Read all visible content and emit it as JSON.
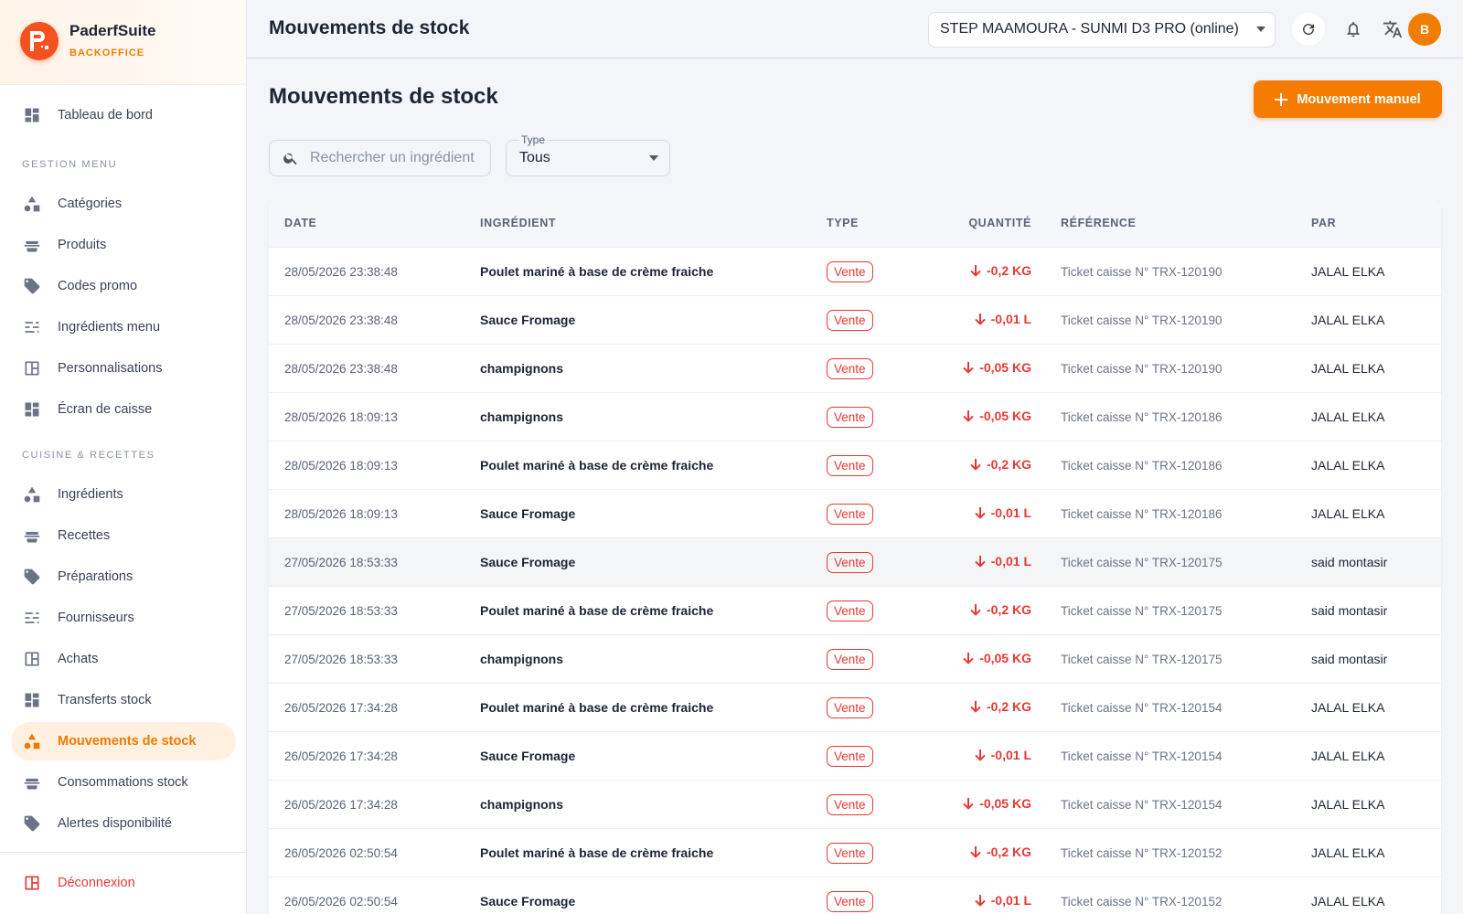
{
  "sidebar": {
    "brand": "PaderfSuite",
    "subtitle": "BACKOFFICE",
    "top_item": "Tableau de bord",
    "sections": [
      {
        "title": "GESTION MENU",
        "items": [
          {
            "label": "Catégories"
          },
          {
            "label": "Produits"
          },
          {
            "label": "Codes promo"
          },
          {
            "label": "Ingrédients menu"
          },
          {
            "label": "Personnalisations"
          },
          {
            "label": "Écran de caisse"
          }
        ]
      },
      {
        "title": "CUISINE & RECETTES",
        "items": [
          {
            "label": "Ingrédients"
          },
          {
            "label": "Recettes"
          },
          {
            "label": "Préparations"
          },
          {
            "label": "Fournisseurs"
          },
          {
            "label": "Achats"
          },
          {
            "label": "Transferts stock"
          },
          {
            "label": "Mouvements de stock",
            "active": true
          },
          {
            "label": "Consommations stock"
          },
          {
            "label": "Alertes disponibilité"
          }
        ]
      }
    ],
    "logout": "Déconnexion"
  },
  "topbar": {
    "title": "Mouvements de stock",
    "store": "STEP MAAMOURA - SUNMI D3 PRO (online)",
    "avatar": "B"
  },
  "page": {
    "heading": "Mouvements de stock",
    "button": "Mouvement manuel",
    "search_placeholder": "Rechercher un ingrédient",
    "filter_label": "Type",
    "filter_value": "Tous"
  },
  "table": {
    "headers": [
      "DATE",
      "INGRÉDIENT",
      "TYPE",
      "QUANTITÉ",
      "RÉFÉRENCE",
      "PAR"
    ],
    "rows": [
      [
        "28/05/2026 23:38:48",
        "Poulet mariné à base de crème fraiche",
        "Vente",
        "-0,2 KG",
        "Ticket caisse N° TRX-120190",
        "JALAL ELKA"
      ],
      [
        "28/05/2026 23:38:48",
        "Sauce Fromage",
        "Vente",
        "-0,01 L",
        "Ticket caisse N° TRX-120190",
        "JALAL ELKA"
      ],
      [
        "28/05/2026 23:38:48",
        "champignons",
        "Vente",
        "-0,05 KG",
        "Ticket caisse N° TRX-120190",
        "JALAL ELKA"
      ],
      [
        "28/05/2026 18:09:13",
        "champignons",
        "Vente",
        "-0,05 KG",
        "Ticket caisse N° TRX-120186",
        "JALAL ELKA"
      ],
      [
        "28/05/2026 18:09:13",
        "Poulet mariné à base de crème fraiche",
        "Vente",
        "-0,2 KG",
        "Ticket caisse N° TRX-120186",
        "JALAL ELKA"
      ],
      [
        "28/05/2026 18:09:13",
        "Sauce Fromage",
        "Vente",
        "-0,01 L",
        "Ticket caisse N° TRX-120186",
        "JALAL ELKA"
      ],
      [
        "27/05/2026 18:53:33",
        "Sauce Fromage",
        "Vente",
        "-0,01 L",
        "Ticket caisse N° TRX-120175",
        "said montasir"
      ],
      [
        "27/05/2026 18:53:33",
        "Poulet mariné à base de crème fraiche",
        "Vente",
        "-0,2 KG",
        "Ticket caisse N° TRX-120175",
        "said montasir"
      ],
      [
        "27/05/2026 18:53:33",
        "champignons",
        "Vente",
        "-0,05 KG",
        "Ticket caisse N° TRX-120175",
        "said montasir"
      ],
      [
        "26/05/2026 17:34:28",
        "Poulet mariné à base de crème fraiche",
        "Vente",
        "-0,2 KG",
        "Ticket caisse N° TRX-120154",
        "JALAL ELKA"
      ],
      [
        "26/05/2026 17:34:28",
        "Sauce Fromage",
        "Vente",
        "-0,01 L",
        "Ticket caisse N° TRX-120154",
        "JALAL ELKA"
      ],
      [
        "26/05/2026 17:34:28",
        "champignons",
        "Vente",
        "-0,05 KG",
        "Ticket caisse N° TRX-120154",
        "JALAL ELKA"
      ],
      [
        "26/05/2026 02:50:54",
        "Poulet mariné à base de crème fraiche",
        "Vente",
        "-0,2 KG",
        "Ticket caisse N° TRX-120152",
        "JALAL ELKA"
      ],
      [
        "26/05/2026 02:50:54",
        "Sauce Fromage",
        "Vente",
        "-0,01 L",
        "Ticket caisse N° TRX-120152",
        "JALAL ELKA"
      ]
    ]
  }
}
